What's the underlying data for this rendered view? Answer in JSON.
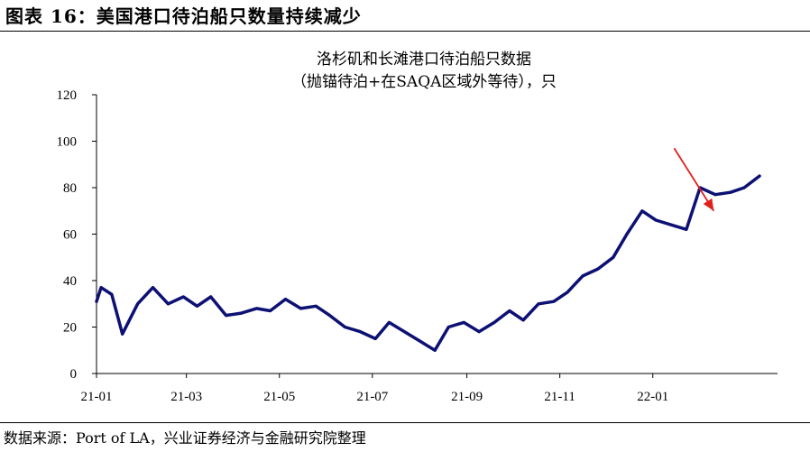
{
  "figure_title": "图表 16：美国港口待泊船只数量持续减少",
  "source": "数据来源：Port of LA，兴业证券经济与金融研究院整理",
  "colors": {
    "line": "#0d1173",
    "arrow": "#e0201b",
    "axis": "#000000"
  },
  "chart_data": {
    "type": "line",
    "title": "洛杉矶和长滩港口待泊船只数据",
    "subtitle": "（抛锚待泊+在SAQA区域外等待），只",
    "xlabel": "",
    "ylabel": "",
    "ylim": [
      0,
      120
    ],
    "yticks": [
      0,
      20,
      40,
      60,
      80,
      100,
      120
    ],
    "x_range": [
      "2021-01-01",
      "2022-03-12"
    ],
    "xticks": [
      {
        "label": "21-01",
        "date": "2021-01-01"
      },
      {
        "label": "21-03",
        "date": "2021-03-01"
      },
      {
        "label": "21-05",
        "date": "2021-05-01"
      },
      {
        "label": "21-07",
        "date": "2021-07-01"
      },
      {
        "label": "21-09",
        "date": "2021-09-01"
      },
      {
        "label": "21-11",
        "date": "2021-11-01"
      },
      {
        "label": "22-01",
        "date": "2022-01-01"
      }
    ],
    "grid": false,
    "series": [
      {
        "points": [
          [
            "2021-01-01",
            31
          ],
          [
            "2021-01-04",
            37
          ],
          [
            "2021-01-11",
            34
          ],
          [
            "2021-01-18",
            17
          ],
          [
            "2021-01-28",
            30
          ],
          [
            "2021-02-07",
            37
          ],
          [
            "2021-02-17",
            30
          ],
          [
            "2021-02-27",
            33
          ],
          [
            "2021-03-08",
            29
          ],
          [
            "2021-03-17",
            33
          ],
          [
            "2021-03-27",
            25
          ],
          [
            "2021-04-06",
            26
          ],
          [
            "2021-04-16",
            28
          ],
          [
            "2021-04-25",
            27
          ],
          [
            "2021-05-05",
            32
          ],
          [
            "2021-05-15",
            28
          ],
          [
            "2021-05-25",
            29
          ],
          [
            "2021-06-03",
            25
          ],
          [
            "2021-06-13",
            20
          ],
          [
            "2021-06-23",
            18
          ],
          [
            "2021-07-03",
            15
          ],
          [
            "2021-07-12",
            22
          ],
          [
            "2021-07-22",
            18
          ],
          [
            "2021-08-01",
            14
          ],
          [
            "2021-08-11",
            10
          ],
          [
            "2021-08-20",
            20
          ],
          [
            "2021-08-30",
            22
          ],
          [
            "2021-09-09",
            18
          ],
          [
            "2021-09-19",
            22
          ],
          [
            "2021-09-29",
            27
          ],
          [
            "2021-10-08",
            23
          ],
          [
            "2021-10-18",
            30
          ],
          [
            "2021-10-28",
            31
          ],
          [
            "2021-11-06",
            35
          ],
          [
            "2021-11-16",
            42
          ],
          [
            "2021-11-26",
            45
          ],
          [
            "2021-12-06",
            50
          ],
          [
            "2021-12-15",
            60
          ],
          [
            "2021-12-25",
            70
          ],
          [
            "2022-01-03",
            66
          ],
          [
            "2022-01-13",
            64
          ],
          [
            "2022-01-23",
            62
          ],
          [
            "2022-02-01",
            80
          ],
          [
            "2022-02-11",
            77
          ],
          [
            "2022-02-21",
            78
          ],
          [
            "2022-03-02",
            80
          ],
          [
            "2022-03-12",
            85
          ]
        ]
      }
    ],
    "trend_arrow": {
      "from": [
        "2022-01-15",
        97
      ],
      "to": [
        "2022-02-10",
        70
      ]
    }
  }
}
